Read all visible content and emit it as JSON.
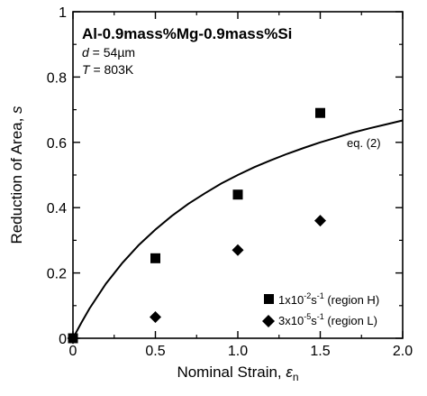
{
  "chart_data": {
    "type": "scatter",
    "title": "Al-0.9mass%Mg-0.9mass%Si",
    "annotations": {
      "line1_var": "d",
      "line1_rest": " = 54µm",
      "line2_var": "T",
      "line2_rest": " = 803K",
      "curve_label": "eq. (2)"
    },
    "xlabel": "Nominal Strain, ",
    "xlabel_symbol": "ε",
    "xlabel_sub": "n",
    "ylabel": "Reduction of Area, ",
    "ylabel_symbol": "s",
    "xlim": [
      0,
      2.0
    ],
    "ylim": [
      0,
      1.0
    ],
    "x_ticks": [
      0,
      0.5,
      1.0,
      1.5,
      2.0
    ],
    "x_tick_labels": [
      "0",
      "0.5",
      "1.0",
      "1.5",
      "2.0"
    ],
    "y_ticks": [
      0,
      0.2,
      0.4,
      0.6,
      0.8,
      1.0
    ],
    "y_tick_labels": [
      "0",
      "0.2",
      "0.4",
      "0.6",
      "0.8",
      "1"
    ],
    "grid": false,
    "legend_position": "bottom-right",
    "series": [
      {
        "name": "1x10⁻²s⁻¹ (region H)",
        "legend_main": "1x10",
        "legend_exp1": "-2",
        "legend_mid": "s",
        "legend_exp2": "-1",
        "legend_tail": " (region H)",
        "marker": "square",
        "x": [
          0,
          0.5,
          1.0,
          1.5
        ],
        "y": [
          0,
          0.245,
          0.44,
          0.69
        ]
      },
      {
        "name": "3x10⁻⁵s⁻¹ (region L)",
        "legend_main": "3x10",
        "legend_exp1": "-5",
        "legend_mid": "s",
        "legend_exp2": "-1",
        "legend_tail": " (region L)",
        "marker": "diamond",
        "x": [
          0,
          0.5,
          1.0,
          1.5
        ],
        "y": [
          0,
          0.065,
          0.27,
          0.36
        ]
      }
    ],
    "curve": {
      "type": "line",
      "x": [
        0,
        0.05,
        0.1,
        0.2,
        0.3,
        0.4,
        0.5,
        0.6,
        0.7,
        0.8,
        0.9,
        1.0,
        1.1,
        1.2,
        1.3,
        1.4,
        1.5,
        1.6,
        1.7,
        1.8,
        1.9,
        2.0
      ],
      "y": [
        0,
        0.047,
        0.091,
        0.167,
        0.231,
        0.286,
        0.333,
        0.375,
        0.412,
        0.444,
        0.474,
        0.5,
        0.524,
        0.545,
        0.565,
        0.583,
        0.6,
        0.615,
        0.63,
        0.643,
        0.655,
        0.667
      ]
    }
  }
}
